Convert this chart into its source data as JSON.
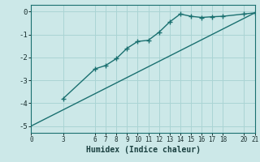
{
  "xlabel": "Humidex (Indice chaleur)",
  "ylabel": "",
  "bg_color": "#cce8e8",
  "grid_color": "#aad4d4",
  "line_color": "#1a7070",
  "marker_color": "#1a7070",
  "xlim": [
    0,
    21
  ],
  "ylim": [
    -5.3,
    0.3
  ],
  "xticks": [
    0,
    3,
    6,
    7,
    8,
    9,
    10,
    11,
    12,
    13,
    14,
    15,
    16,
    17,
    18,
    20,
    21
  ],
  "yticks": [
    0,
    -1,
    -2,
    -3,
    -4,
    -5
  ],
  "straight_line_x": [
    0,
    21
  ],
  "straight_line_y": [
    -5.0,
    -0.05
  ],
  "curve_x": [
    3,
    6,
    7,
    8,
    9,
    10,
    11,
    12,
    13,
    14,
    15,
    16,
    17,
    18,
    20,
    21
  ],
  "curve_y": [
    -3.8,
    -2.5,
    -2.35,
    -2.05,
    -1.6,
    -1.3,
    -1.25,
    -0.9,
    -0.45,
    -0.1,
    -0.2,
    -0.25,
    -0.22,
    -0.2,
    -0.1,
    -0.05
  ]
}
